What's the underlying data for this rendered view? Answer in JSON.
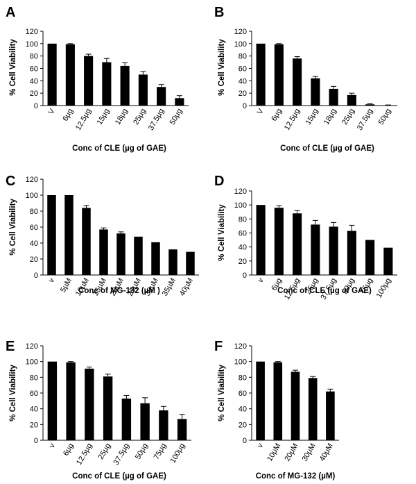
{
  "chart_data": [
    {
      "panel": "A",
      "type": "bar",
      "categories": [
        "V",
        "6µg",
        "12.5µg",
        "15µg",
        "18µg",
        "25µg",
        "37.5µg",
        "50µg"
      ],
      "values": [
        100,
        99,
        80,
        70,
        64,
        50,
        30,
        12
      ],
      "errors": [
        0,
        1,
        3,
        6,
        5,
        5,
        4,
        4
      ],
      "xlabel": "Conc of CLE (µg of GAE)",
      "ylabel": "% Cell Viability",
      "ylim": [
        0,
        120
      ],
      "yticks": [
        0,
        20,
        40,
        60,
        80,
        100,
        120
      ]
    },
    {
      "panel": "B",
      "type": "bar",
      "categories": [
        "V",
        "6µg",
        "12.5µg",
        "15µg",
        "18µg",
        "25µg",
        "37.5µg",
        "50µg"
      ],
      "values": [
        100,
        99,
        76,
        44,
        27,
        17,
        2,
        0.5
      ],
      "errors": [
        0,
        1,
        3,
        3,
        4,
        3,
        1,
        0.5
      ],
      "xlabel": "Conc of CLE (µg of GAE)",
      "ylabel": "% Cell Viability",
      "ylim": [
        0,
        120
      ],
      "yticks": [
        0,
        20,
        40,
        60,
        80,
        100,
        120
      ]
    },
    {
      "panel": "C",
      "type": "bar",
      "categories": [
        "v",
        "5µM",
        "10µM",
        "15µM",
        "20µM",
        "25µM",
        "30µM",
        "35µM",
        "40µM"
      ],
      "values": [
        100,
        100,
        84,
        57,
        52,
        48,
        41,
        32,
        29
      ],
      "errors": [
        0,
        0,
        3,
        2,
        2,
        0,
        0,
        0,
        0
      ],
      "xlabel": "Conc of MG-132 (µM )",
      "ylabel": "% Cell Viability",
      "ylim": [
        0,
        120
      ],
      "yticks": [
        0,
        20,
        40,
        60,
        80,
        100,
        120
      ]
    },
    {
      "panel": "D",
      "type": "bar",
      "categories": [
        "v",
        "6µg",
        "12.5µg",
        "25µg",
        "37.5µg",
        "50µg",
        "75µg",
        "100µg"
      ],
      "values": [
        100,
        96,
        88,
        72,
        69,
        63,
        50,
        39
      ],
      "errors": [
        0,
        3,
        4,
        6,
        6,
        8,
        0,
        0
      ],
      "xlabel": "Conc of CLE (µg of GAE)",
      "ylabel": "% Cell Viability",
      "ylim": [
        0,
        120
      ],
      "yticks": [
        0,
        20,
        40,
        60,
        80,
        100,
        120
      ]
    },
    {
      "panel": "E",
      "type": "bar",
      "categories": [
        "v",
        "6µg",
        "12.5µg",
        "25µg",
        "37.5µg",
        "50µg",
        "75µg",
        "100µg"
      ],
      "values": [
        100,
        99,
        91,
        81,
        53,
        47,
        38,
        27
      ],
      "errors": [
        0,
        1,
        2,
        3,
        4,
        7,
        5,
        6
      ],
      "xlabel": "Conc of CLE (µg of GAE)",
      "ylabel": "% Cell Viability",
      "ylim": [
        0,
        120
      ],
      "yticks": [
        0,
        20,
        40,
        60,
        80,
        100,
        120
      ]
    },
    {
      "panel": "F",
      "type": "bar",
      "categories": [
        "v",
        "10µM",
        "20µM",
        "30µM",
        "40µM"
      ],
      "values": [
        100,
        99,
        87,
        79,
        62
      ],
      "errors": [
        0,
        1,
        2,
        2,
        3
      ],
      "xlabel": "Conc of  MG-132 (µM)",
      "ylabel": "% Cell Viability",
      "ylim": [
        0,
        120
      ],
      "yticks": [
        0,
        20,
        40,
        60,
        80,
        100,
        120
      ]
    }
  ]
}
